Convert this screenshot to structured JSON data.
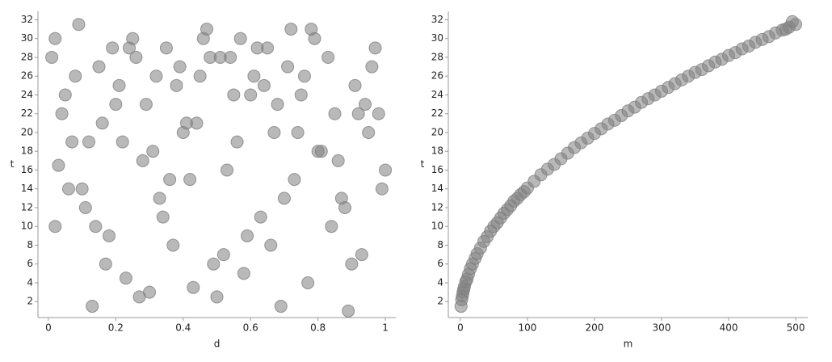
{
  "chart_data": [
    {
      "type": "scatter",
      "x_label": "d",
      "y_label": "t",
      "color": "#808080",
      "xlim": [
        -0.031,
        1.031
      ],
      "ylim": [
        0.3,
        32.9
      ],
      "xticks": [
        0,
        0.2,
        0.4,
        0.6,
        0.8,
        1
      ],
      "yticks": [
        2,
        4,
        6,
        8,
        10,
        12,
        14,
        16,
        18,
        20,
        22,
        24,
        26,
        28,
        30,
        32
      ],
      "x": [
        0.01,
        0.03,
        0.05,
        0.02,
        0.07,
        0.09,
        0.11,
        0.13,
        0.04,
        0.06,
        0.15,
        0.17,
        0.19,
        0.21,
        0.23,
        0.12,
        0.14,
        0.25,
        0.27,
        0.29,
        0.31,
        0.33,
        0.35,
        0.37,
        0.39,
        0.41,
        0.43,
        0.45,
        0.47,
        0.49,
        0.51,
        0.53,
        0.55,
        0.57,
        0.59,
        0.61,
        0.63,
        0.65,
        0.67,
        0.69,
        0.71,
        0.73,
        0.75,
        0.77,
        0.79,
        0.81,
        0.83,
        0.85,
        0.87,
        0.89,
        0.91,
        0.93,
        0.95,
        0.97,
        0.99,
        0.08,
        0.18,
        0.28,
        0.38,
        0.48,
        0.58,
        0.68,
        0.78,
        0.88,
        0.98,
        0.02,
        0.16,
        0.26,
        0.36,
        0.46,
        0.56,
        0.66,
        0.76,
        0.86,
        0.96,
        0.1,
        0.2,
        0.3,
        0.4,
        0.5,
        0.6,
        0.7,
        0.8,
        0.9,
        1.0,
        0.24,
        0.34,
        0.44,
        0.54,
        0.64,
        0.74,
        0.84,
        0.94,
        0.62,
        0.42,
        0.22,
        0.32,
        0.52,
        0.72,
        0.92
      ],
      "y": [
        28,
        16.5,
        24,
        30,
        19,
        31.5,
        12,
        1.5,
        22,
        14,
        27,
        6,
        29,
        25,
        4.5,
        19,
        10,
        30,
        2.5,
        23,
        18,
        13,
        29,
        8,
        27,
        21,
        3.5,
        26,
        31,
        6,
        28,
        16,
        24,
        30,
        9,
        26,
        11,
        29,
        20,
        1.5,
        27,
        15,
        24,
        4,
        30,
        18,
        28,
        22,
        13,
        1,
        25,
        7,
        20,
        29,
        14,
        26,
        9,
        17,
        25,
        28,
        5,
        23,
        31,
        12,
        22,
        10,
        21,
        28,
        15,
        30,
        19,
        8,
        26,
        17,
        27,
        14,
        23,
        3,
        20,
        2.5,
        24,
        13,
        18,
        6,
        16,
        29,
        11,
        21,
        28,
        25,
        20,
        10,
        23,
        29,
        15,
        19,
        26,
        7,
        31,
        22
      ]
    },
    {
      "type": "scatter",
      "x_label": "m",
      "y_label": "t",
      "color": "#808080",
      "xlim": [
        -18,
        518
      ],
      "ylim": [
        0.3,
        32.9
      ],
      "xticks": [
        0,
        100,
        200,
        300,
        400,
        500
      ],
      "yticks": [
        2,
        4,
        6,
        8,
        10,
        12,
        14,
        16,
        18,
        20,
        22,
        24,
        26,
        28,
        30,
        32
      ],
      "x": [
        1,
        2,
        3,
        4,
        5,
        6,
        8,
        10,
        12,
        15,
        18,
        22,
        25,
        30,
        35,
        40,
        45,
        50,
        55,
        60,
        65,
        70,
        75,
        80,
        85,
        90,
        95,
        100,
        110,
        120,
        130,
        140,
        150,
        160,
        170,
        180,
        190,
        200,
        210,
        220,
        230,
        240,
        250,
        260,
        270,
        280,
        290,
        300,
        310,
        320,
        330,
        340,
        350,
        360,
        370,
        380,
        390,
        400,
        410,
        420,
        430,
        440,
        450,
        460,
        470,
        480,
        490,
        500,
        495,
        485
      ],
      "y": [
        1.5,
        2.2,
        2.6,
        3.0,
        3.3,
        3.6,
        4.1,
        4.4,
        4.9,
        5.5,
        6.0,
        6.6,
        7.1,
        7.7,
        8.4,
        8.9,
        9.5,
        10.0,
        10.4,
        10.9,
        11.4,
        11.8,
        12.2,
        12.7,
        13.0,
        13.4,
        13.7,
        14.1,
        14.8,
        15.5,
        16.1,
        16.6,
        17.2,
        17.8,
        18.4,
        18.9,
        19.4,
        19.9,
        20.4,
        20.9,
        21.3,
        21.8,
        22.3,
        22.7,
        23.2,
        23.6,
        24.0,
        24.4,
        24.8,
        25.2,
        25.6,
        26.0,
        26.4,
        26.7,
        27.1,
        27.5,
        27.8,
        28.2,
        28.5,
        28.9,
        29.2,
        29.6,
        29.9,
        30.2,
        30.6,
        30.9,
        31.2,
        31.5,
        31.8,
        31.0
      ]
    }
  ]
}
